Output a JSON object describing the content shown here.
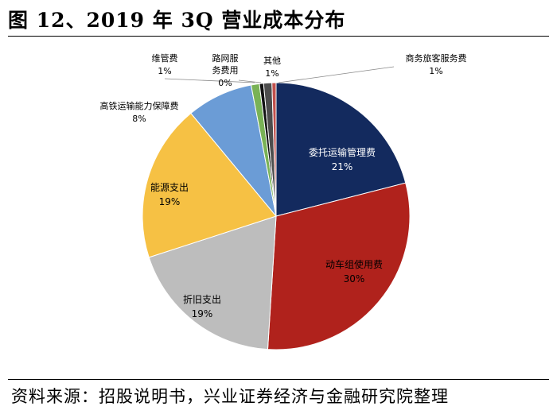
{
  "page": {
    "title": "图 12、2019 年 3Q 营业成本分布",
    "source": "资料来源：招股说明书，兴业证券经济与金融研究院整理"
  },
  "chart_data": {
    "type": "pie",
    "title": "图 12、2019 年 3Q 营业成本分布",
    "start": "12 o'clock, clockwise",
    "slices": [
      {
        "name": "委托运输管理费",
        "label": "21%",
        "value": 21,
        "color": "#132a5e",
        "text_color": "#ffffff"
      },
      {
        "name": "动车组使用费",
        "label": "30%",
        "value": 30,
        "color": "#b0221c",
        "text_color": "#000000"
      },
      {
        "name": "折旧支出",
        "label": "19%",
        "value": 19,
        "color": "#bdbdbd",
        "text_color": "#000000"
      },
      {
        "name": "能源支出",
        "label": "19%",
        "value": 19,
        "color": "#f6c144",
        "text_color": "#000000"
      },
      {
        "name": "高铁运输能力保障费",
        "label": "8%",
        "value": 8,
        "color": "#6b9cd6",
        "text_color": "#000000"
      },
      {
        "name": "维管费",
        "label": "1%",
        "value": 1,
        "color": "#79b256",
        "text_color": "#000000"
      },
      {
        "name": "路网服务费用",
        "label": "0%",
        "value": 0.5,
        "color": "#111111",
        "text_color": "#000000"
      },
      {
        "name": "其他",
        "label": "1%",
        "value": 1,
        "color": "#4d4d4d",
        "text_color": "#000000"
      },
      {
        "name": "商务旅客服务费",
        "label": "1%",
        "value": 0.5,
        "color": "#c0504d",
        "text_color": "#000000"
      }
    ]
  }
}
